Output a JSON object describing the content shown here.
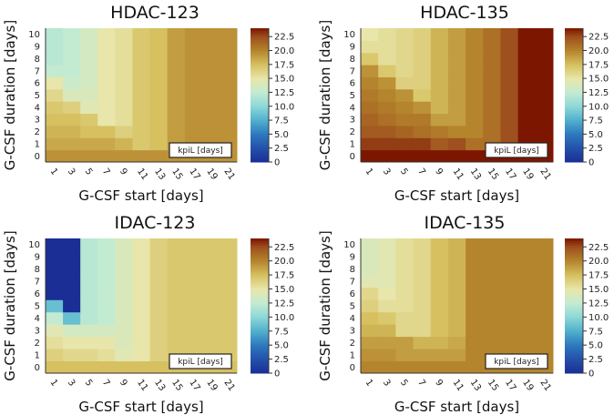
{
  "chart_data": [
    {
      "type": "heatmap",
      "title": "HDAC-123",
      "xlabel": "G-CSF start [days]",
      "ylabel": "G-CSF duration [days]",
      "x": [
        1,
        3,
        5,
        7,
        9,
        11,
        13,
        15,
        17,
        19,
        21
      ],
      "y": [
        0,
        1,
        2,
        3,
        4,
        5,
        6,
        7,
        8,
        9,
        10
      ],
      "legend": "kpiL [days]",
      "legend_position": "bottom-right",
      "colorbar_ticks": [
        "0",
        "2.5",
        "5.0",
        "7.5",
        "10.0",
        "12.5",
        "15.0",
        "17.5",
        "20.0",
        "22.5"
      ],
      "clim": [
        0,
        24
      ],
      "values": [
        [
          19.5,
          19.5,
          19.5,
          19.5,
          19.5,
          19.5,
          19.5,
          19.5,
          19.5,
          19.5,
          19.5
        ],
        [
          18.5,
          18.5,
          18.5,
          18.5,
          18,
          17,
          17.5,
          19,
          19.5,
          19.5,
          19.5
        ],
        [
          18,
          18,
          17.5,
          17.5,
          16.5,
          17,
          17.5,
          19,
          19.5,
          19.5,
          19.5
        ],
        [
          17.5,
          17.5,
          17,
          15,
          15.5,
          17,
          17.5,
          19,
          19.5,
          19.5,
          19.5
        ],
        [
          17,
          16.5,
          14.5,
          15,
          15.5,
          17,
          17.5,
          19,
          19.5,
          19.5,
          19.5
        ],
        [
          16,
          14,
          14,
          15,
          15.5,
          17,
          17.5,
          19,
          19.5,
          19.5,
          19.5
        ],
        [
          15,
          13,
          13.5,
          15,
          15.5,
          17,
          17.5,
          19,
          19.5,
          19.5,
          19.5
        ],
        [
          12.5,
          12.5,
          13.5,
          15,
          15.5,
          17,
          17.5,
          19,
          19.5,
          19.5,
          19.5
        ],
        [
          12,
          12.5,
          13.5,
          15,
          15.5,
          17,
          17.5,
          19,
          19.5,
          19.5,
          19.5
        ],
        [
          12,
          12.5,
          13.5,
          15,
          15.5,
          17,
          17.5,
          19,
          19.5,
          19.5,
          19.5
        ],
        [
          12,
          12.5,
          13.5,
          15,
          15.5,
          17,
          17.5,
          19,
          19.5,
          19.5,
          19.5
        ]
      ]
    },
    {
      "type": "heatmap",
      "title": "HDAC-135",
      "xlabel": "G-CSF start [days]",
      "ylabel": "G-CSF duration [days]",
      "x": [
        1,
        3,
        5,
        7,
        9,
        11,
        13,
        15,
        17,
        19,
        21
      ],
      "y": [
        0,
        1,
        2,
        3,
        4,
        5,
        6,
        7,
        8,
        9,
        10
      ],
      "legend": "kpiL [days]",
      "legend_position": "bottom-right",
      "colorbar_ticks": [
        "0",
        "2.5",
        "5.0",
        "7.5",
        "10.0",
        "12.5",
        "15.0",
        "17.5",
        "20.0",
        "22.5"
      ],
      "clim": [
        0,
        24
      ],
      "values": [
        [
          24,
          24,
          24,
          24,
          24,
          24,
          24,
          24,
          24,
          24,
          24
        ],
        [
          23,
          23,
          23,
          23,
          22,
          22.5,
          21,
          21,
          22.5,
          24,
          24
        ],
        [
          22,
          22,
          21.5,
          21,
          20.5,
          20,
          20,
          21,
          22.5,
          24,
          24
        ],
        [
          21.5,
          21,
          20.5,
          20.5,
          19,
          19,
          20,
          21,
          22.5,
          24,
          24
        ],
        [
          21,
          20.5,
          20,
          19.5,
          18,
          19,
          20,
          21,
          22.5,
          24,
          24
        ],
        [
          20.5,
          20,
          19.5,
          17,
          18,
          19,
          20,
          21,
          22.5,
          24,
          24
        ],
        [
          20,
          19.5,
          16.5,
          16.5,
          18,
          19,
          20,
          21,
          22.5,
          24,
          24
        ],
        [
          19.5,
          17,
          16,
          16.5,
          18,
          19,
          20,
          21,
          22.5,
          24,
          24
        ],
        [
          17,
          15.5,
          16,
          16.5,
          18,
          19,
          20,
          21,
          22.5,
          24,
          24
        ],
        [
          15.5,
          15.5,
          16,
          16.5,
          18,
          19,
          20,
          21,
          22.5,
          24,
          24
        ],
        [
          15,
          15.5,
          16,
          16.5,
          18,
          19,
          20,
          21,
          22.5,
          24,
          24
        ]
      ]
    },
    {
      "type": "heatmap",
      "title": "IDAC-123",
      "xlabel": "G-CSF start [days]",
      "ylabel": "G-CSF duration [days]",
      "x": [
        1,
        3,
        5,
        7,
        9,
        11,
        13,
        15,
        17,
        19,
        21
      ],
      "y": [
        0,
        1,
        2,
        3,
        4,
        5,
        6,
        7,
        8,
        9,
        10
      ],
      "legend": "kpiL [days]",
      "legend_position": "bottom-right",
      "colorbar_ticks": [
        "0",
        "2.5",
        "5.0",
        "7.5",
        "10.0",
        "12.5",
        "15.0",
        "17.5",
        "20.0",
        "22.5"
      ],
      "clim": [
        0,
        24
      ],
      "values": [
        [
          17.5,
          17.5,
          17.5,
          17.5,
          17.5,
          17.5,
          17.5,
          17.5,
          17.5,
          17.5,
          17.5
        ],
        [
          16.5,
          16,
          16,
          15.5,
          14.5,
          15,
          16.5,
          17,
          17,
          17,
          17
        ],
        [
          15.5,
          15,
          15,
          15,
          14,
          15,
          16.5,
          17,
          17,
          17,
          17
        ],
        [
          14.5,
          13.5,
          13.5,
          13.5,
          14,
          15,
          16.5,
          17,
          17,
          17,
          17
        ],
        [
          12.5,
          8.5,
          12,
          12.5,
          14,
          15,
          16.5,
          17,
          17,
          17,
          17
        ],
        [
          8.5,
          0,
          12,
          12.5,
          14,
          15,
          16.5,
          17,
          17,
          17,
          17
        ],
        [
          0,
          0,
          12,
          12.5,
          14,
          15,
          16.5,
          17,
          17,
          17,
          17
        ],
        [
          0,
          0,
          12,
          12.5,
          14,
          15,
          16.5,
          17,
          17,
          17,
          17
        ],
        [
          0,
          0,
          12,
          12.5,
          14,
          15,
          16.5,
          17,
          17,
          17,
          17
        ],
        [
          0,
          0,
          12,
          12.5,
          14,
          15,
          16.5,
          17,
          17,
          17,
          17
        ],
        [
          0,
          0,
          12,
          12.5,
          14,
          15,
          16.5,
          17,
          17,
          17,
          17
        ]
      ]
    },
    {
      "type": "heatmap",
      "title": "IDAC-135",
      "xlabel": "G-CSF start [days]",
      "ylabel": "G-CSF duration [days]",
      "x": [
        1,
        3,
        5,
        7,
        9,
        11,
        13,
        15,
        17,
        19,
        21
      ],
      "y": [
        0,
        1,
        2,
        3,
        4,
        5,
        6,
        7,
        8,
        9,
        10
      ],
      "legend": "kpiL [days]",
      "legend_position": "bottom-right",
      "colorbar_ticks": [
        "0",
        "2.5",
        "5.0",
        "7.5",
        "10.0",
        "12.5",
        "15.0",
        "17.5",
        "20.0",
        "22.5"
      ],
      "clim": [
        0,
        24
      ],
      "values": [
        [
          20,
          20,
          20,
          20,
          20,
          20,
          20,
          20,
          20,
          20,
          20
        ],
        [
          19.5,
          19.5,
          19,
          19,
          19,
          19,
          20,
          20,
          20,
          20,
          20
        ],
        [
          19,
          19,
          19,
          18,
          18,
          18.5,
          20,
          20,
          20,
          20,
          20
        ],
        [
          18,
          18,
          16,
          16,
          17.5,
          18,
          20,
          20,
          20,
          20,
          20
        ],
        [
          17.5,
          17,
          16,
          16,
          17.5,
          18,
          20,
          20,
          20,
          20,
          20
        ],
        [
          16.5,
          15.5,
          15.5,
          16,
          17.5,
          18,
          20,
          20,
          20,
          20,
          20
        ],
        [
          16,
          15,
          15.5,
          16,
          17.5,
          18,
          20,
          20,
          20,
          20,
          20
        ],
        [
          14.5,
          14.5,
          15.5,
          16,
          17.5,
          18,
          20,
          20,
          20,
          20,
          20
        ],
        [
          14,
          14.5,
          15.5,
          16,
          17.5,
          18,
          20,
          20,
          20,
          20,
          20
        ],
        [
          14,
          14.5,
          15.5,
          16,
          17.5,
          18,
          20,
          20,
          20,
          20,
          20
        ],
        [
          14,
          14.5,
          15.5,
          16,
          17.5,
          18,
          20,
          20,
          20,
          20,
          20
        ]
      ]
    }
  ]
}
